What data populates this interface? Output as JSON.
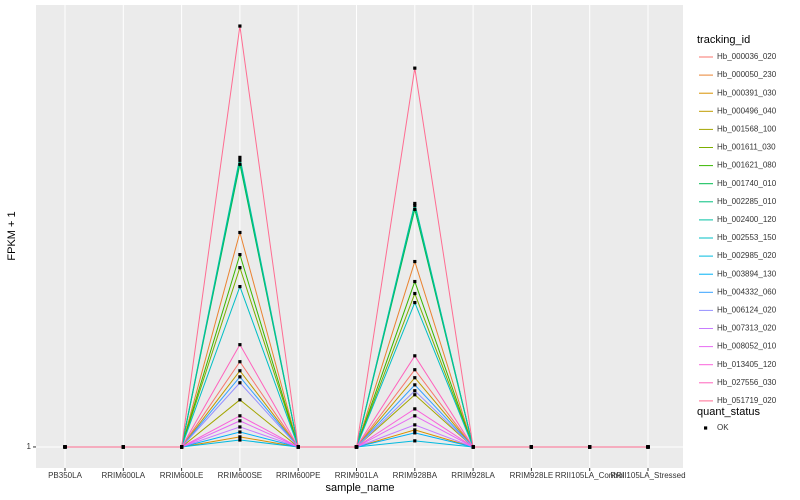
{
  "chart_data": {
    "type": "line",
    "x_label": "sample_name",
    "y_label": "FPKM + 1",
    "categories": [
      "PB350LA",
      "RRIM600LA",
      "RRIM600LE",
      "RRIM600SE",
      "RRIM600PE",
      "RRIM901LA",
      "RRIM928BA",
      "RRIM928LA",
      "RRIM928LE",
      "RRII105LA_Control",
      "RRII105LA_Stressed"
    ],
    "ylim": [
      0,
      22
    ],
    "yticks": [
      1
    ],
    "grid": true,
    "legend_title": "tracking_id",
    "point_color": "#000000",
    "shape_legend": {
      "title": "quant_status",
      "labels": [
        "OK"
      ]
    },
    "series": [
      {
        "name": "Hb_000036_020",
        "color": "#F8766D",
        "values": [
          1,
          1,
          1,
          5.05,
          1,
          1,
          4.67,
          1,
          1,
          1,
          1
        ]
      },
      {
        "name": "Hb_000050_230",
        "color": "#EA8331",
        "values": [
          1,
          1,
          1,
          11.19,
          1,
          1,
          9.81,
          1,
          1,
          1,
          1
        ]
      },
      {
        "name": "Hb_000391_030",
        "color": "#D89000",
        "values": [
          1,
          1,
          1,
          1.48,
          1,
          1,
          1.81,
          1,
          1,
          1,
          1
        ]
      },
      {
        "name": "Hb_000496_040",
        "color": "#C09B00",
        "values": [
          1,
          1,
          1,
          4.62,
          1,
          1,
          4.29,
          1,
          1,
          1,
          1
        ]
      },
      {
        "name": "Hb_001568_100",
        "color": "#A3A500",
        "values": [
          1,
          1,
          1,
          3.24,
          1,
          1,
          3.48,
          1,
          1,
          1,
          1
        ]
      },
      {
        "name": "Hb_001611_030",
        "color": "#7CAE00",
        "values": [
          1,
          1,
          1,
          9.52,
          1,
          1,
          8.29,
          1,
          1,
          1,
          1
        ]
      },
      {
        "name": "Hb_001621_080",
        "color": "#39B600",
        "values": [
          1,
          1,
          1,
          10.14,
          1,
          1,
          8.86,
          1,
          1,
          1,
          1
        ]
      },
      {
        "name": "Hb_001740_010",
        "color": "#00BB4E",
        "values": [
          1,
          1,
          1,
          14.43,
          1,
          1,
          12.29,
          1,
          1,
          1,
          1
        ]
      },
      {
        "name": "Hb_002285_010",
        "color": "#00BF7D",
        "values": [
          1,
          1,
          1,
          14.62,
          1,
          1,
          12.48,
          1,
          1,
          1,
          1
        ]
      },
      {
        "name": "Hb_002400_120",
        "color": "#00C1A3",
        "values": [
          1,
          1,
          1,
          14.76,
          1,
          1,
          12.57,
          1,
          1,
          1,
          1
        ]
      },
      {
        "name": "Hb_002553_150",
        "color": "#00BFC4",
        "values": [
          1,
          1,
          1,
          8.62,
          1,
          1,
          7.86,
          1,
          1,
          1,
          1
        ]
      },
      {
        "name": "Hb_002985_020",
        "color": "#00BAE0",
        "values": [
          1,
          1,
          1,
          1.33,
          1,
          1,
          1.29,
          1,
          1,
          1,
          1
        ]
      },
      {
        "name": "Hb_003894_130",
        "color": "#00B0F6",
        "values": [
          1,
          1,
          1,
          1.71,
          1,
          1,
          1.67,
          1,
          1,
          1,
          1
        ]
      },
      {
        "name": "Hb_004332_060",
        "color": "#35A2FF",
        "values": [
          1,
          1,
          1,
          4.33,
          1,
          1,
          3.95,
          1,
          1,
          1,
          1
        ]
      },
      {
        "name": "Hb_006124_020",
        "color": "#9590FF",
        "values": [
          1,
          1,
          1,
          4.05,
          1,
          1,
          3.67,
          1,
          1,
          1,
          1
        ]
      },
      {
        "name": "Hb_007313_020",
        "color": "#C77CFF",
        "values": [
          1,
          1,
          1,
          1.95,
          1,
          1,
          2.05,
          1,
          1,
          1,
          1
        ]
      },
      {
        "name": "Hb_008052_010",
        "color": "#E76BF3",
        "values": [
          1,
          1,
          1,
          2.24,
          1,
          1,
          2.48,
          1,
          1,
          1,
          1
        ]
      },
      {
        "name": "Hb_013405_120",
        "color": "#FA62DB",
        "values": [
          1,
          1,
          1,
          2.48,
          1,
          1,
          2.81,
          1,
          1,
          1,
          1
        ]
      },
      {
        "name": "Hb_027556_030",
        "color": "#FF62BC",
        "values": [
          1,
          1,
          1,
          5.86,
          1,
          1,
          5.33,
          1,
          1,
          1,
          1
        ]
      },
      {
        "name": "Hb_051719_020",
        "color": "#FF6C91",
        "values": [
          1,
          1,
          1,
          21.0,
          1,
          1,
          19.0,
          1,
          1,
          1,
          1
        ]
      }
    ]
  }
}
